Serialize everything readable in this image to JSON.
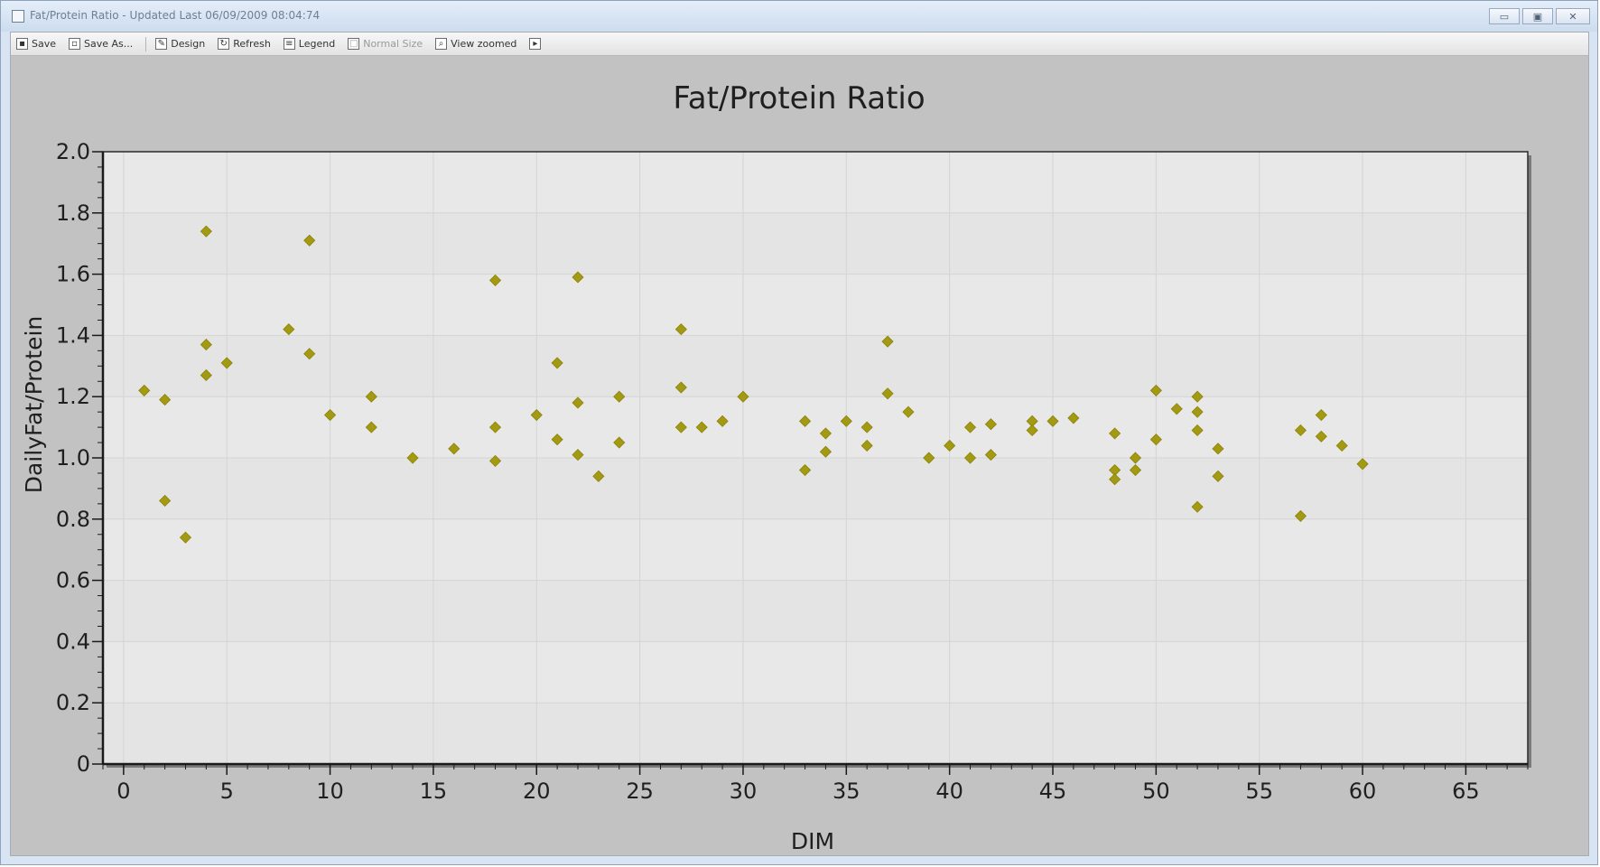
{
  "window": {
    "title": "Fat/Protein Ratio - Updated Last 06/09/2009 08:04:74",
    "controls": {
      "minimize_label": "▭",
      "maximize_label": "▣",
      "close_label": "✕"
    }
  },
  "toolbar": {
    "items": [
      {
        "label": "Save",
        "icon": "save-icon",
        "enabled": true
      },
      {
        "label": "Save As...",
        "icon": "save-as-icon",
        "enabled": true
      },
      {
        "label": "Design",
        "icon": "design-icon",
        "enabled": true
      },
      {
        "label": "Refresh",
        "icon": "refresh-icon",
        "enabled": true
      },
      {
        "label": "Legend",
        "icon": "legend-icon",
        "enabled": true
      },
      {
        "label": "Normal Size",
        "icon": "normal-size-icon",
        "enabled": false
      },
      {
        "label": "View zoomed",
        "icon": "zoom-icon",
        "enabled": true
      }
    ]
  },
  "colors": {
    "marker": "#a39a12",
    "plot_bg": "#e4e4e4",
    "chart_bg": "#c2c2c2",
    "grid": "#d4d4d4"
  },
  "chart_data": {
    "type": "scatter",
    "title": "Fat/Protein Ratio",
    "xlabel": "DIM",
    "ylabel": "DailyFat/Protein",
    "xlim": [
      -1,
      68
    ],
    "ylim": [
      0,
      2.0
    ],
    "xticks": [
      0,
      5,
      10,
      15,
      20,
      25,
      30,
      35,
      40,
      45,
      50,
      55,
      60,
      65
    ],
    "yticks": [
      0,
      0.2,
      0.4,
      0.6,
      0.8,
      1.0,
      1.2,
      1.4,
      1.6,
      1.8,
      2.0
    ],
    "ytick_labels": [
      "0",
      "0.2",
      "0.4",
      "0.6",
      "0.8",
      "1.0",
      "1.2",
      "1.4",
      "1.6",
      "1.8",
      "2.0"
    ],
    "grid": true,
    "legend": "none",
    "marker": "diamond",
    "points": [
      {
        "x": 1,
        "y": 1.22
      },
      {
        "x": 2,
        "y": 1.19
      },
      {
        "x": 2,
        "y": 0.86
      },
      {
        "x": 3,
        "y": 0.74
      },
      {
        "x": 4,
        "y": 1.74
      },
      {
        "x": 4,
        "y": 1.37
      },
      {
        "x": 4,
        "y": 1.27
      },
      {
        "x": 5,
        "y": 1.31
      },
      {
        "x": 8,
        "y": 1.42
      },
      {
        "x": 9,
        "y": 1.71
      },
      {
        "x": 9,
        "y": 1.34
      },
      {
        "x": 10,
        "y": 1.14
      },
      {
        "x": 12,
        "y": 1.2
      },
      {
        "x": 12,
        "y": 1.1
      },
      {
        "x": 14,
        "y": 1.0
      },
      {
        "x": 16,
        "y": 1.03
      },
      {
        "x": 18,
        "y": 1.58
      },
      {
        "x": 18,
        "y": 1.1
      },
      {
        "x": 18,
        "y": 0.99
      },
      {
        "x": 20,
        "y": 1.14
      },
      {
        "x": 21,
        "y": 1.31
      },
      {
        "x": 21,
        "y": 1.06
      },
      {
        "x": 22,
        "y": 1.59
      },
      {
        "x": 22,
        "y": 1.18
      },
      {
        "x": 22,
        "y": 1.01
      },
      {
        "x": 23,
        "y": 0.94
      },
      {
        "x": 24,
        "y": 1.2
      },
      {
        "x": 24,
        "y": 1.05
      },
      {
        "x": 27,
        "y": 1.42
      },
      {
        "x": 27,
        "y": 1.23
      },
      {
        "x": 27,
        "y": 1.1
      },
      {
        "x": 28,
        "y": 1.1
      },
      {
        "x": 29,
        "y": 1.12
      },
      {
        "x": 30,
        "y": 1.2
      },
      {
        "x": 33,
        "y": 1.12
      },
      {
        "x": 33,
        "y": 0.96
      },
      {
        "x": 34,
        "y": 1.08
      },
      {
        "x": 34,
        "y": 1.02
      },
      {
        "x": 35,
        "y": 1.12
      },
      {
        "x": 36,
        "y": 1.1
      },
      {
        "x": 36,
        "y": 1.04
      },
      {
        "x": 37,
        "y": 1.38
      },
      {
        "x": 37,
        "y": 1.21
      },
      {
        "x": 38,
        "y": 1.15
      },
      {
        "x": 39,
        "y": 1.0
      },
      {
        "x": 40,
        "y": 1.04
      },
      {
        "x": 41,
        "y": 1.1
      },
      {
        "x": 41,
        "y": 1.0
      },
      {
        "x": 42,
        "y": 1.11
      },
      {
        "x": 42,
        "y": 1.01
      },
      {
        "x": 44,
        "y": 1.12
      },
      {
        "x": 44,
        "y": 1.09
      },
      {
        "x": 45,
        "y": 1.12
      },
      {
        "x": 46,
        "y": 1.13
      },
      {
        "x": 48,
        "y": 1.08
      },
      {
        "x": 48,
        "y": 0.96
      },
      {
        "x": 48,
        "y": 0.93
      },
      {
        "x": 49,
        "y": 1.0
      },
      {
        "x": 49,
        "y": 0.96
      },
      {
        "x": 50,
        "y": 1.22
      },
      {
        "x": 50,
        "y": 1.06
      },
      {
        "x": 51,
        "y": 1.16
      },
      {
        "x": 52,
        "y": 1.2
      },
      {
        "x": 52,
        "y": 1.15
      },
      {
        "x": 52,
        "y": 1.09
      },
      {
        "x": 52,
        "y": 0.84
      },
      {
        "x": 53,
        "y": 1.03
      },
      {
        "x": 53,
        "y": 0.94
      },
      {
        "x": 57,
        "y": 1.09
      },
      {
        "x": 57,
        "y": 0.81
      },
      {
        "x": 58,
        "y": 1.14
      },
      {
        "x": 58,
        "y": 1.07
      },
      {
        "x": 59,
        "y": 1.04
      },
      {
        "x": 60,
        "y": 0.98
      }
    ]
  }
}
